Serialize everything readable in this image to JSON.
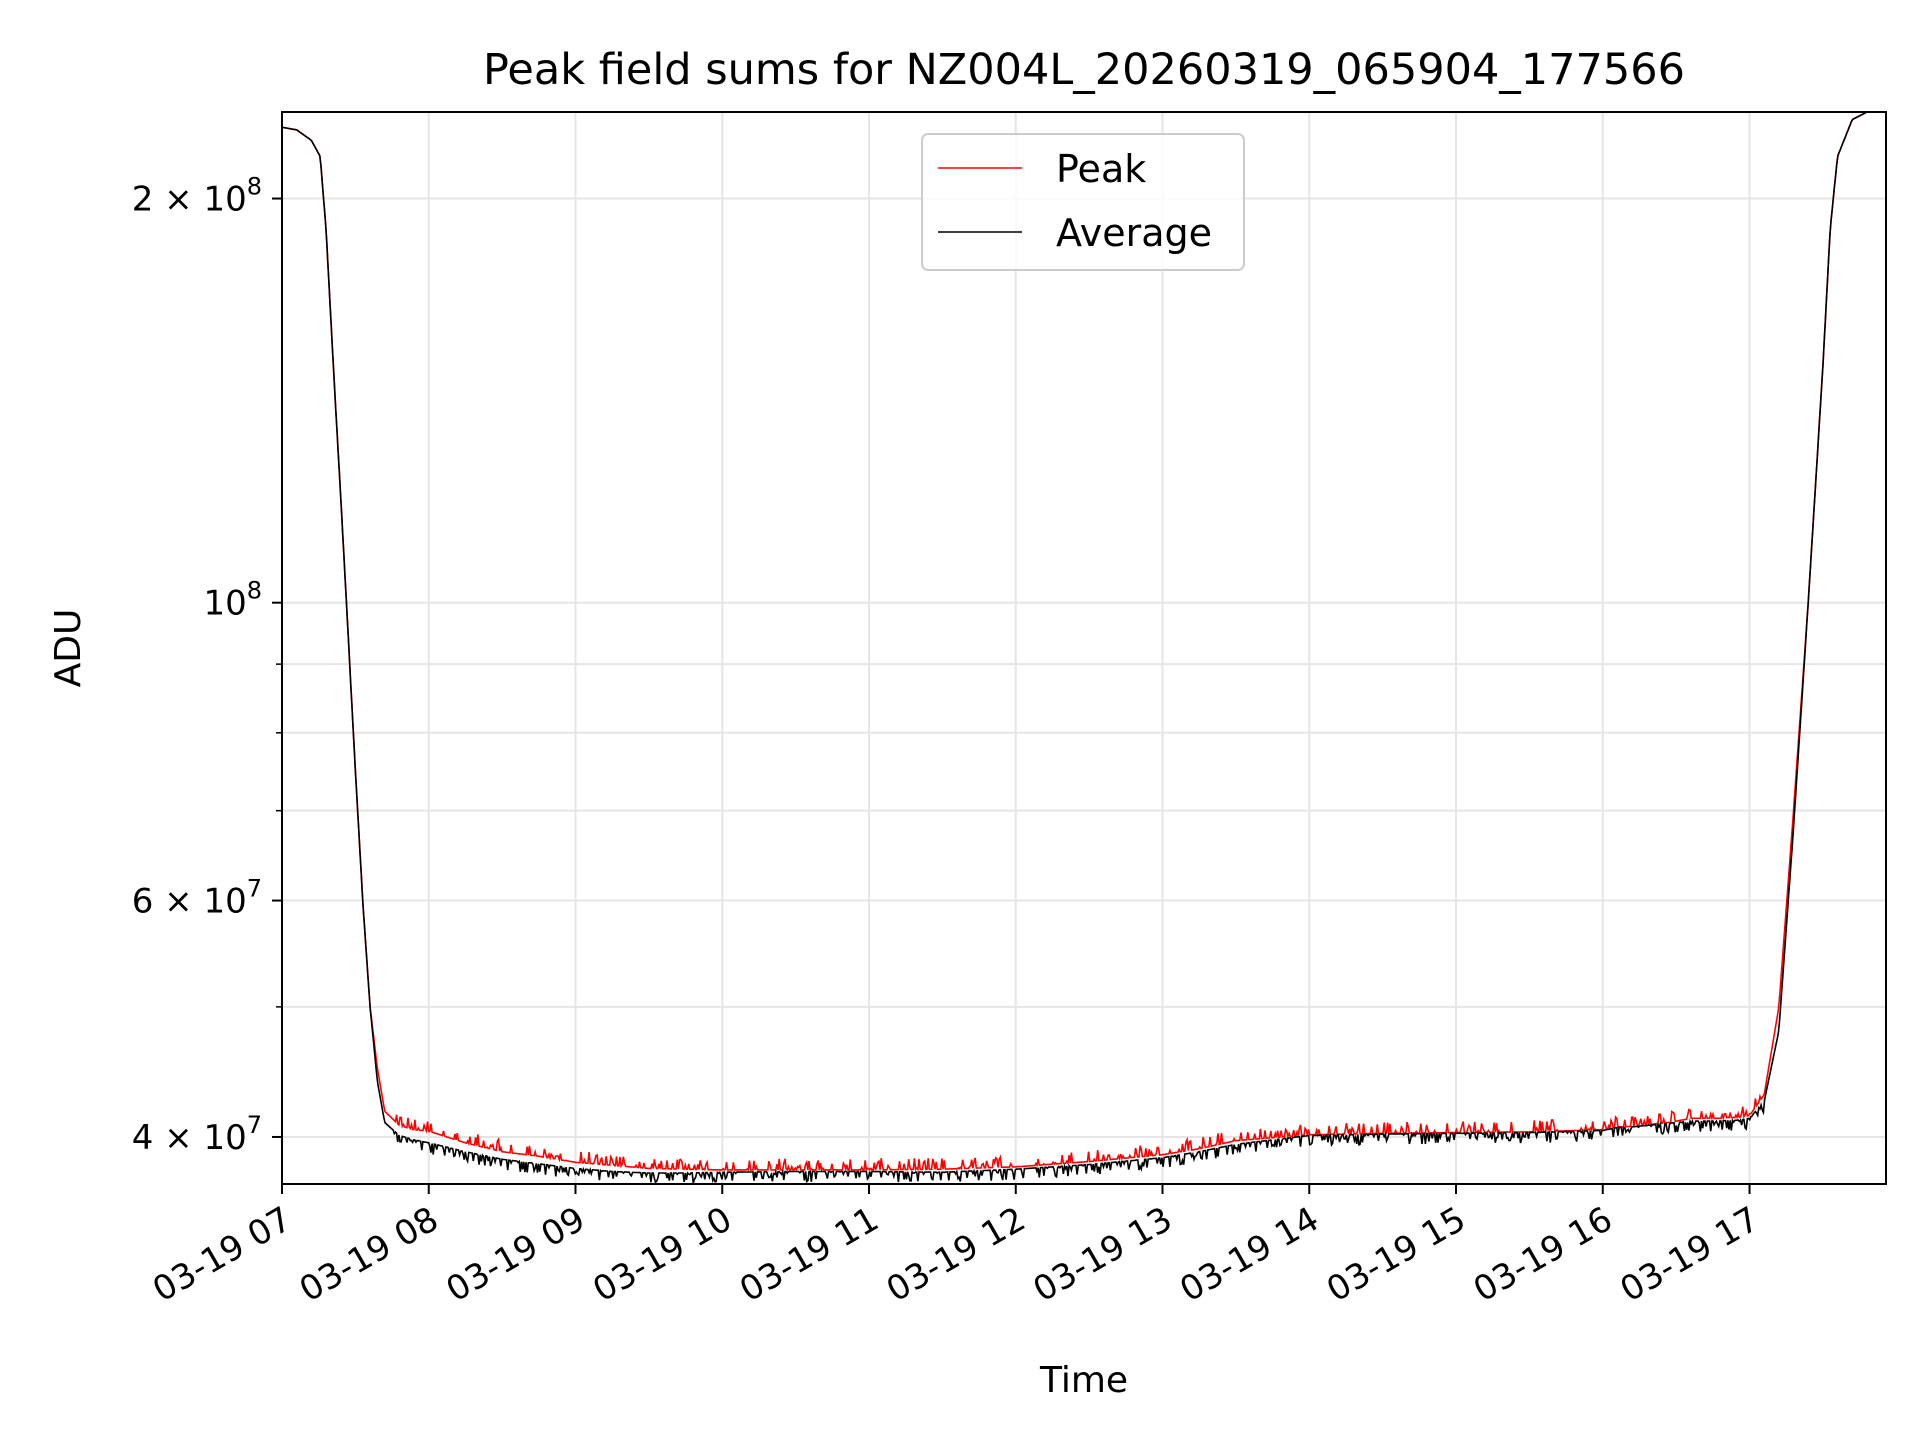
{
  "chart_data": {
    "type": "line",
    "title": "Peak field sums for NZ004L_20260319_065904_177566",
    "xlabel": "Time",
    "ylabel": "ADU",
    "yscale": "log",
    "ylim": [
      36900000,
      232000000
    ],
    "xlim_hours": [
      7.0,
      17.93
    ],
    "grid": true,
    "legend_position": "upper center",
    "x_tick_labels": [
      "03-19 07",
      "03-19 08",
      "03-19 09",
      "03-19 10",
      "03-19 11",
      "03-19 12",
      "03-19 13",
      "03-19 14",
      "03-19 15",
      "03-19 16",
      "03-19 17"
    ],
    "x_tick_hours": [
      7,
      8,
      9,
      10,
      11,
      12,
      13,
      14,
      15,
      16,
      17
    ],
    "y_major_ticks": [
      {
        "value": 40000000,
        "mantissa": "4",
        "exponent": "7",
        "base_label": "10"
      },
      {
        "value": 60000000,
        "mantissa": "6",
        "exponent": "7",
        "base_label": "10"
      },
      {
        "value": 100000000,
        "mantissa": "",
        "exponent": "8",
        "base_label": "10"
      },
      {
        "value": 200000000,
        "mantissa": "2",
        "exponent": "8",
        "base_label": "10"
      }
    ],
    "y_minor_ticks": [
      50000000,
      70000000,
      80000000,
      90000000
    ],
    "series": [
      {
        "name": "Peak",
        "color": "#ff0000",
        "hour": [
          7.0,
          7.1,
          7.2,
          7.26,
          7.3,
          7.35,
          7.4,
          7.45,
          7.5,
          7.55,
          7.6,
          7.65,
          7.7,
          7.8,
          7.9,
          8.0,
          8.25,
          8.5,
          8.75,
          9.0,
          9.25,
          9.5,
          9.75,
          10.0,
          10.5,
          11.0,
          11.5,
          12.0,
          12.5,
          13.0,
          13.25,
          13.5,
          14.0,
          14.5,
          15.0,
          15.5,
          16.0,
          16.1,
          16.15,
          16.2,
          16.25,
          16.3,
          16.35,
          16.4,
          16.45,
          16.5,
          16.55,
          16.6,
          16.65,
          16.7,
          16.75,
          16.8,
          16.85,
          16.9,
          16.95,
          17.0,
          17.1,
          17.2,
          17.3,
          17.4,
          17.5,
          17.55,
          17.6,
          17.7,
          17.8,
          17.93
        ],
        "adu": [
          226000000,
          225000000,
          221000000,
          215000000,
          190000000,
          150000000,
          120000000,
          95000000,
          75000000,
          60000000,
          50000000,
          45000000,
          41800000,
          40800000,
          40500000,
          40400000,
          39600000,
          39000000,
          38700000,
          38300000,
          38100000,
          37900000,
          37850000,
          37800000,
          37800000,
          37800000,
          37850000,
          38000000,
          38350000,
          38800000,
          39200000,
          39750000,
          40150000,
          40250000,
          40300000,
          40350000,
          40500000,
          40700000,
          40700000,
          40750000,
          40800000,
          40850000,
          40900000,
          40950000,
          41000000,
          41100000,
          41200000,
          41300000,
          41300000,
          41300000,
          41300000,
          41300000,
          41350000,
          41350000,
          41400000,
          41500000,
          43000000,
          50000000,
          70000000,
          100000000,
          150000000,
          190000000,
          215000000,
          229000000,
          232000000,
          232000000
        ]
      },
      {
        "name": "Average",
        "color": "#000000",
        "hour": [
          7.0,
          7.1,
          7.2,
          7.26,
          7.3,
          7.35,
          7.4,
          7.45,
          7.5,
          7.55,
          7.6,
          7.65,
          7.7,
          7.8,
          7.9,
          8.0,
          8.25,
          8.5,
          8.75,
          9.0,
          9.25,
          9.5,
          9.75,
          10.0,
          10.5,
          11.0,
          11.5,
          12.0,
          12.5,
          13.0,
          13.25,
          13.5,
          14.0,
          14.5,
          15.0,
          15.5,
          16.0,
          16.1,
          16.15,
          16.2,
          16.25,
          16.3,
          16.35,
          16.4,
          16.45,
          16.5,
          16.55,
          16.6,
          16.65,
          16.7,
          16.75,
          16.8,
          16.85,
          16.9,
          16.95,
          17.0,
          17.1,
          17.2,
          17.3,
          17.4,
          17.5,
          17.55,
          17.6,
          17.7,
          17.8,
          17.93
        ],
        "adu": [
          226000000,
          225000000,
          221000000,
          215000000,
          190000000,
          150000000,
          120000000,
          95000000,
          75000000,
          60000000,
          50000000,
          44000000,
          41000000,
          40100000,
          39800000,
          39600000,
          39000000,
          38500000,
          38200000,
          37900000,
          37700000,
          37600000,
          37600000,
          37650000,
          37700000,
          37700000,
          37650000,
          37850000,
          38150000,
          38600000,
          39000000,
          39500000,
          40100000,
          40200000,
          40250000,
          40300000,
          40450000,
          40650000,
          40650000,
          40700000,
          40750000,
          40800000,
          40850000,
          40900000,
          40950000,
          41000000,
          41050000,
          41100000,
          41100000,
          41100000,
          41100000,
          41100000,
          41150000,
          41150000,
          41200000,
          41300000,
          42500000,
          48000000,
          68000000,
          100000000,
          150000000,
          190000000,
          215000000,
          229000000,
          232000000,
          232000000
        ]
      }
    ]
  }
}
